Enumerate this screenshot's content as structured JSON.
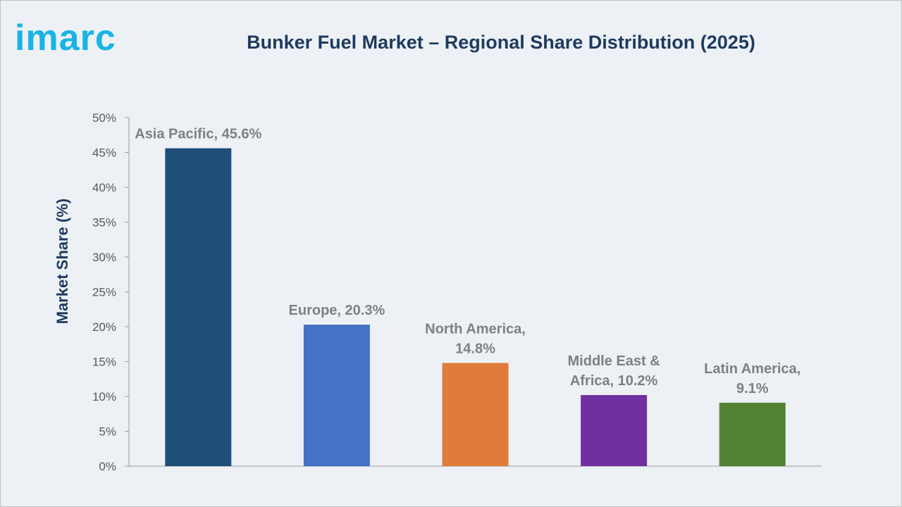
{
  "brand": {
    "logo_text": "imarc"
  },
  "chart_data": {
    "type": "bar",
    "title": "Bunker Fuel Market – Regional Share Distribution (2025)",
    "ylabel": "Market Share (%)",
    "xlabel": "",
    "ylim": [
      0,
      50
    ],
    "yticks": [
      "0%",
      "5%",
      "10%",
      "15%",
      "20%",
      "25%",
      "30%",
      "35%",
      "40%",
      "45%",
      "50%"
    ],
    "grid": false,
    "categories": [
      "Asia Pacific",
      "Europe",
      "North America",
      "Middle East & Africa",
      "Latin America"
    ],
    "values": [
      45.6,
      20.3,
      14.8,
      10.2,
      9.1
    ],
    "labels": [
      [
        "Asia Pacific, 45.6%"
      ],
      [
        "Europe, 20.3%"
      ],
      [
        "North America,",
        "14.8%"
      ],
      [
        "Middle East &",
        "Africa, 10.2%"
      ],
      [
        "Latin America,",
        "9.1%"
      ]
    ],
    "colors": [
      "#1f4e79",
      "#4472c4",
      "#e07b39",
      "#7030a0",
      "#548235"
    ]
  }
}
